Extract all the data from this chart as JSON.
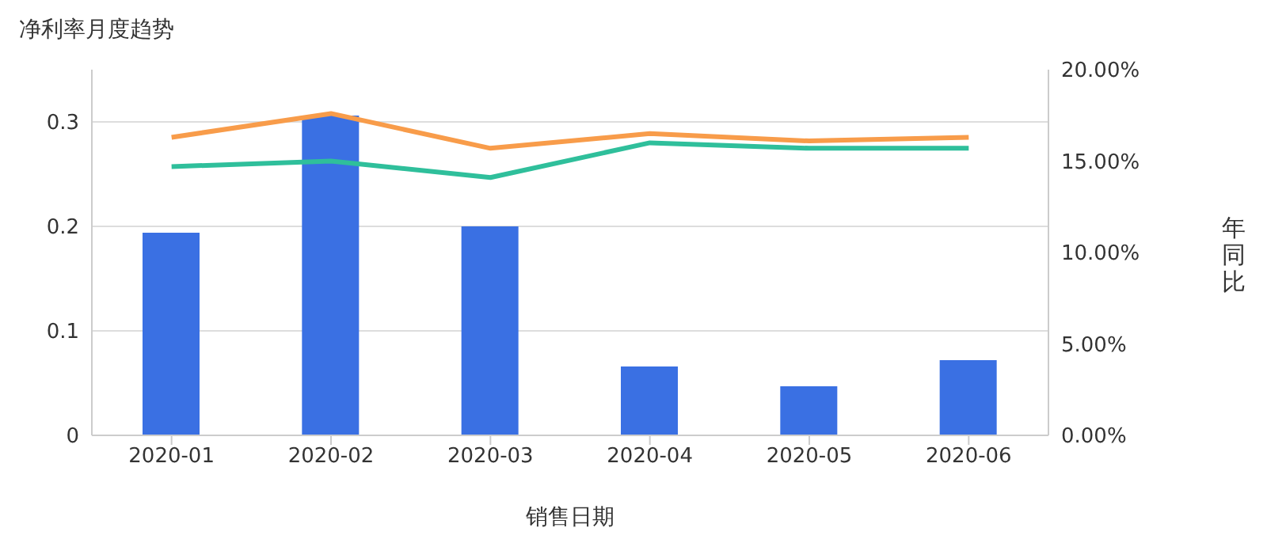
{
  "chart_data": {
    "type": "bar",
    "title": "净利率月度趋势",
    "xlabel": "销售日期",
    "y2label": "年同比",
    "categories": [
      "2020-01",
      "2020-02",
      "2020-03",
      "2020-04",
      "2020-05",
      "2020-06"
    ],
    "series": [
      {
        "color": "#3a70e3",
        "values": [
          0.194,
          0.306,
          0.2,
          0.066,
          0.047,
          0.072
        ]
      },
      {
        "type": "line",
        "axis": "y2",
        "color": "#f89c4a",
        "values": [
          16.3,
          17.6,
          15.7,
          16.5,
          16.1,
          16.3
        ]
      },
      {
        "type": "line",
        "axis": "y2",
        "color": "#2fbf9b",
        "values": [
          14.7,
          15.0,
          14.1,
          16.0,
          15.7,
          15.7
        ]
      }
    ],
    "ylim": [
      0,
      0.35
    ],
    "yticks": [
      0,
      0.1,
      0.2,
      0.3
    ],
    "y2lim": [
      0,
      20
    ],
    "y2ticks": [
      {
        "value": 0,
        "label": "0.00%"
      },
      {
        "value": 5,
        "label": "5.00%"
      },
      {
        "value": 10,
        "label": "10.00%"
      },
      {
        "value": 15,
        "label": "15.00%"
      },
      {
        "value": 20,
        "label": "20.00%"
      }
    ],
    "grid": "y",
    "legend": false,
    "marker": "none",
    "line_style": "solid"
  }
}
